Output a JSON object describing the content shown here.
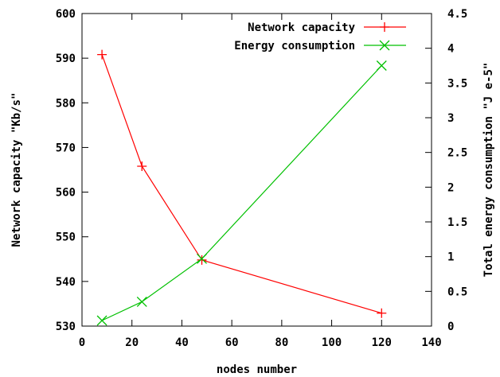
{
  "chart_data": {
    "type": "line",
    "xlabel": "nodes number",
    "ylabel": "Network capacity \"Kb/s\"",
    "y2label": "Total energy consumption \"J e-5\"",
    "xlim": [
      0,
      140
    ],
    "ylim": [
      530,
      600
    ],
    "y2lim": [
      0,
      4.5
    ],
    "x_ticks": [
      0,
      20,
      40,
      60,
      80,
      100,
      120,
      140
    ],
    "y_ticks": [
      530,
      540,
      550,
      560,
      570,
      580,
      590,
      600
    ],
    "y2_ticks": [
      "0",
      "0.5",
      "1",
      "1.5",
      "2",
      "2.5",
      "3",
      "3.5",
      "4",
      "4.5"
    ],
    "grid": false,
    "legend_position": "top-right",
    "series": [
      {
        "name": "Network capacity",
        "axis": "left",
        "color": "#ff0000",
        "marker": "plus",
        "x": [
          8,
          24,
          48,
          120
        ],
        "y": [
          590.8,
          565.8,
          544.8,
          532.9
        ]
      },
      {
        "name": "Energy consumption",
        "axis": "right",
        "color": "#00c000",
        "marker": "cross",
        "x": [
          8,
          24,
          48,
          120
        ],
        "y": [
          0.08,
          0.35,
          0.97,
          3.75
        ]
      }
    ]
  }
}
